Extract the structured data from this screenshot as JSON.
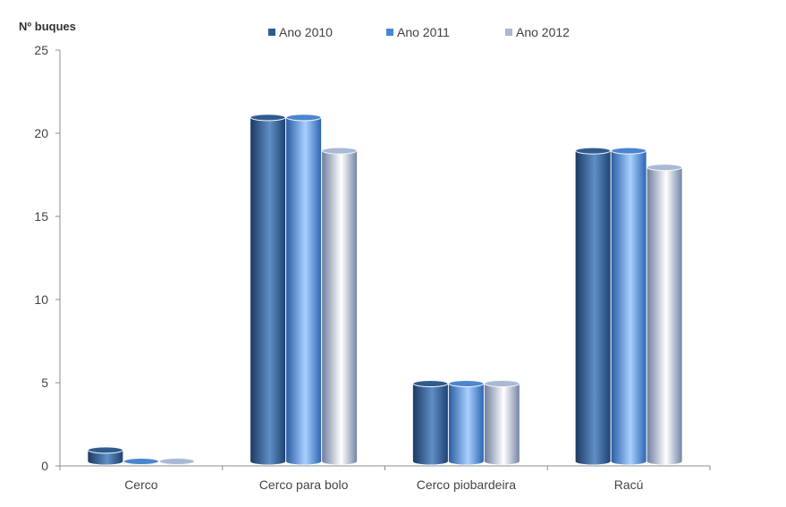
{
  "chart_data": {
    "type": "bar",
    "title": "",
    "xlabel": "",
    "ylabel": "Nº buques",
    "ylim": [
      0,
      25
    ],
    "yticks": [
      0,
      5,
      10,
      15,
      20,
      25
    ],
    "categories": [
      "Cerco",
      "Cerco para bolo",
      "Cerco piobardeira",
      "Racú"
    ],
    "series": [
      {
        "name": "Ano 2010",
        "values": [
          1,
          21,
          5,
          19
        ],
        "color": "#2f5b8e"
      },
      {
        "name": "Ano 2011",
        "values": [
          0,
          21,
          5,
          19
        ],
        "color": "#4a86cf"
      },
      {
        "name": "Ano 2012",
        "values": [
          0,
          19,
          5,
          18
        ],
        "color": "#a9b8d3"
      }
    ],
    "legend_position": "top",
    "grid": false
  }
}
